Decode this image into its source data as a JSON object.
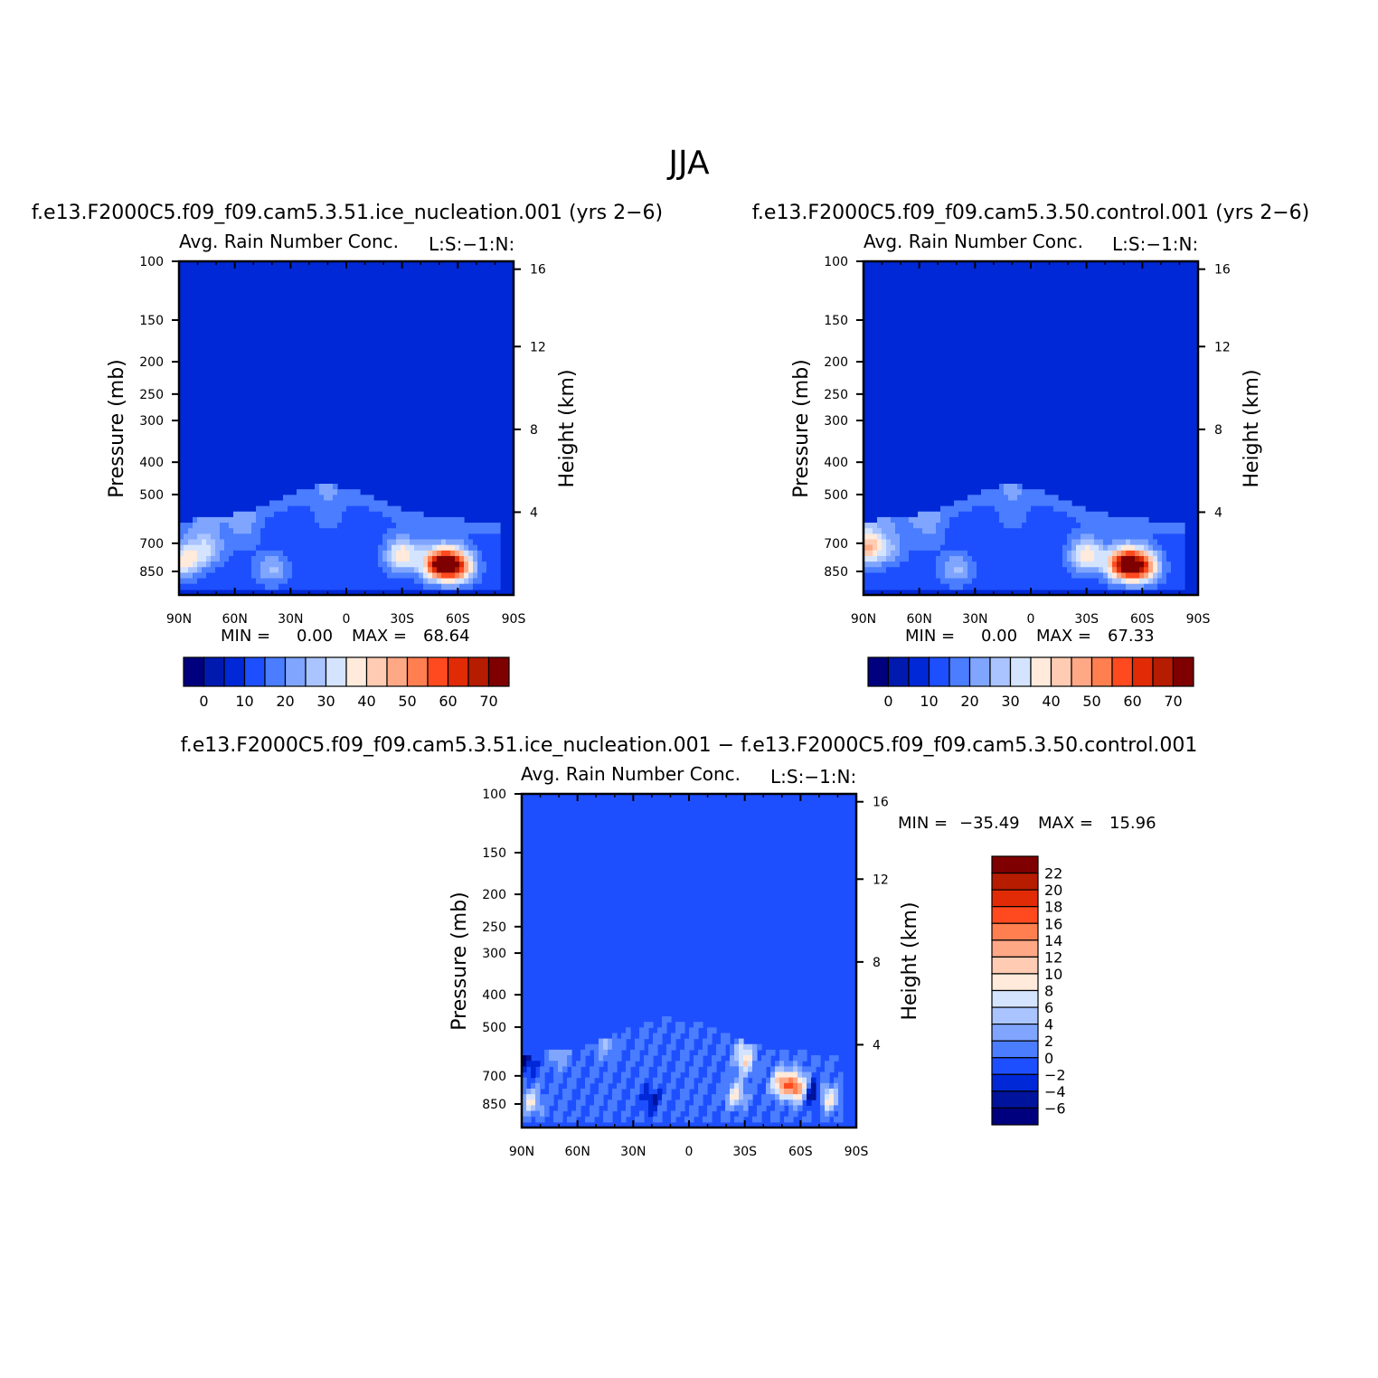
{
  "title": "JJA",
  "colors": {
    "abs_scale": [
      "#00007f",
      "#001ab0",
      "#0028d6",
      "#1e4fff",
      "#4a7dff",
      "#7fa5ff",
      "#a9c4ff",
      "#d4e4ff",
      "#ffeadb",
      "#ffcbb3",
      "#ffa886",
      "#ff7f50",
      "#ff4a1f",
      "#e12b06",
      "#b51c00",
      "#7f0000"
    ],
    "diff_scale": [
      "#00007f",
      "#00139c",
      "#0028d6",
      "#1e4fff",
      "#4a7dff",
      "#7fa5ff",
      "#a9c4ff",
      "#d4e4ff",
      "#ffeadb",
      "#ffcbb3",
      "#ffa886",
      "#ff7f50",
      "#ff4a1f",
      "#e12b06",
      "#b51c00",
      "#7f0000"
    ]
  },
  "chart_data": [
    {
      "type": "heatmap",
      "case_title": "f.e13.F2000C5.f09_f09.cam5.3.51.ice_nucleation.001 (yrs 2−6)",
      "subtitle": "Avg. Rain Number Conc.",
      "units_label": "L:S:−1:N:",
      "xlabel": "",
      "ylabel": "Pressure (mb)",
      "ylabel_right": "Height (km)",
      "x_ticks": [
        "90N",
        "60N",
        "30N",
        "0",
        "30S",
        "60S",
        "90S"
      ],
      "y_ticks": [
        "100",
        "150",
        "200",
        "250",
        "300",
        "400",
        "500",
        "700",
        "850"
      ],
      "y_ticks_right": [
        "16",
        "12",
        "8",
        "4"
      ],
      "min_label": "MIN =",
      "min_value": "0.00",
      "max_label": "MAX =",
      "max_value": "68.64",
      "min": 0.0,
      "max": 68.64,
      "colorbar_ticks": [
        "0",
        "10",
        "20",
        "30",
        "40",
        "50",
        "60",
        "70"
      ],
      "features": [
        {
          "lat": 87,
          "p": 790,
          "value": 38
        },
        {
          "lat": 75,
          "p": 720,
          "value": 30
        },
        {
          "lat": 55,
          "p": 640,
          "value": 20
        },
        {
          "lat": 40,
          "p": 840,
          "value": 26
        },
        {
          "lat": 10,
          "p": 560,
          "value": 18
        },
        {
          "lat": -30,
          "p": 760,
          "value": 40
        },
        {
          "lat": -50,
          "p": 810,
          "value": 68
        },
        {
          "lat": -60,
          "p": 820,
          "value": 55
        }
      ]
    },
    {
      "type": "heatmap",
      "case_title": "f.e13.F2000C5.f09_f09.cam5.3.50.control.001 (yrs 2−6)",
      "subtitle": "Avg. Rain Number Conc.",
      "units_label": "L:S:−1:N:",
      "xlabel": "",
      "ylabel": "Pressure (mb)",
      "ylabel_right": "Height (km)",
      "x_ticks": [
        "90N",
        "60N",
        "30N",
        "0",
        "30S",
        "60S",
        "90S"
      ],
      "y_ticks": [
        "100",
        "150",
        "200",
        "250",
        "300",
        "400",
        "500",
        "700",
        "850"
      ],
      "y_ticks_right": [
        "16",
        "12",
        "8",
        "4"
      ],
      "min_label": "MIN =",
      "min_value": "0.00",
      "max_label": "MAX =",
      "max_value": "67.33",
      "min": 0.0,
      "max": 67.33,
      "colorbar_ticks": [
        "0",
        "10",
        "20",
        "30",
        "40",
        "50",
        "60",
        "70"
      ],
      "features": [
        {
          "lat": 88,
          "p": 720,
          "value": 45
        },
        {
          "lat": 75,
          "p": 720,
          "value": 22
        },
        {
          "lat": 55,
          "p": 640,
          "value": 20
        },
        {
          "lat": 40,
          "p": 840,
          "value": 26
        },
        {
          "lat": 10,
          "p": 560,
          "value": 18
        },
        {
          "lat": -30,
          "p": 760,
          "value": 40
        },
        {
          "lat": -50,
          "p": 810,
          "value": 67
        },
        {
          "lat": -60,
          "p": 820,
          "value": 55
        }
      ]
    },
    {
      "type": "heatmap",
      "case_title": "f.e13.F2000C5.f09_f09.cam5.3.51.ice_nucleation.001 − f.e13.F2000C5.f09_f09.cam5.3.50.control.001",
      "subtitle": "Avg. Rain Number Conc.",
      "units_label": "L:S:−1:N:",
      "xlabel": "",
      "ylabel": "Pressure (mb)",
      "ylabel_right": "Height (km)",
      "x_ticks": [
        "90N",
        "60N",
        "30N",
        "0",
        "30S",
        "60S",
        "90S"
      ],
      "y_ticks": [
        "100",
        "150",
        "200",
        "250",
        "300",
        "400",
        "500",
        "700",
        "850"
      ],
      "y_ticks_right": [
        "16",
        "12",
        "8",
        "4"
      ],
      "min_label": "MIN =",
      "min_value": "−35.49",
      "max_label": "MAX =",
      "max_value": "15.96",
      "min": -35.49,
      "max": 15.96,
      "colorbar_ticks": [
        "22",
        "20",
        "18",
        "16",
        "14",
        "12",
        "10",
        "8",
        "6",
        "4",
        "2",
        "0",
        "−2",
        "−4",
        "−6"
      ],
      "features": [
        {
          "lat": 88,
          "p": 620,
          "value": -6
        },
        {
          "lat": 85,
          "p": 840,
          "value": 8
        },
        {
          "lat": 70,
          "p": 600,
          "value": 4
        },
        {
          "lat": 45,
          "p": 560,
          "value": 4
        },
        {
          "lat": 20,
          "p": 820,
          "value": -4
        },
        {
          "lat": -25,
          "p": 800,
          "value": 8
        },
        {
          "lat": -30,
          "p": 620,
          "value": 10
        },
        {
          "lat": -50,
          "p": 740,
          "value": 14
        },
        {
          "lat": -58,
          "p": 760,
          "value": 16
        },
        {
          "lat": -67,
          "p": 800,
          "value": -6
        },
        {
          "lat": -75,
          "p": 820,
          "value": 10
        }
      ]
    }
  ]
}
